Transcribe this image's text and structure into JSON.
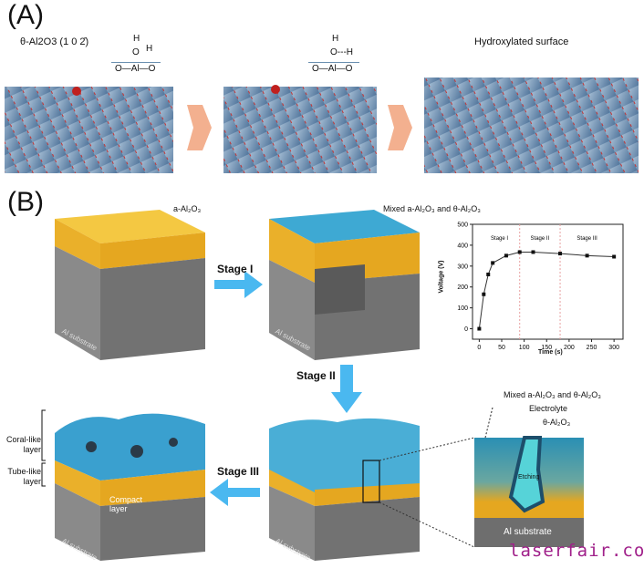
{
  "panel_a": {
    "label": "(A)",
    "surface_label": "θ-Al2O3 (1 0 2̄)",
    "scheme1": {
      "h_top": "H",
      "o": "O",
      "h_side": "H",
      "base": "O—Al—O"
    },
    "scheme2": {
      "h_top": "H",
      "o": "O---H",
      "base": "O—Al—O"
    },
    "hydroxylated_label": "Hydroxylated surface",
    "colors": {
      "arrow": "#f3b08f",
      "crystal": "#5d7fa6",
      "oxygen": "#c0201e",
      "aluminum": "#b9cfdc"
    }
  },
  "panel_b": {
    "label": "(B)",
    "cube1": {
      "top_label": "a-Al₂O₃",
      "substrate": "Al substrate"
    },
    "cube2": {
      "top_label": "Mixed a-Al₂O₃ and θ-Al₂O₃",
      "substrate": "Al substrate"
    },
    "cube3": {
      "coral_label": "Coral-like layer",
      "tube_label": "Tube-like layer",
      "compact_label": "Compact layer",
      "substrate": "Al substrate"
    },
    "cube4": {
      "substrate": "Al substrate"
    },
    "stage1": "Stage I",
    "stage2": "Stage II",
    "stage3": "Stage III",
    "inset": {
      "mixed": "Mixed a-Al₂O₃ and θ-Al₂O₃",
      "electrolyte": "Electrolyte",
      "theta": "θ-Al₂O₃",
      "etching": "Etching",
      "substrate": "Al substrate"
    },
    "colors": {
      "yellow": "#f0b428",
      "blue": "#3ba8d4",
      "gray": "#7c7c7c",
      "arrow": "#4ab8f0"
    }
  },
  "chart_data": {
    "type": "line",
    "title": "",
    "xlabel": "Time (s)",
    "ylabel": "Voltage (V)",
    "x": [
      0,
      10,
      20,
      30,
      60,
      90,
      120,
      180,
      240,
      300
    ],
    "series": [
      {
        "values": [
          0,
          165,
          260,
          315,
          350,
          367,
          367,
          360,
          350,
          345
        ]
      }
    ],
    "xlim": [
      -15,
      320
    ],
    "ylim": [
      -50,
      500
    ],
    "xticks": [
      0,
      50,
      100,
      150,
      200,
      250,
      300
    ],
    "yticks": [
      0,
      100,
      200,
      300,
      400,
      500
    ],
    "stage_dividers": [
      90,
      180
    ],
    "stage_labels": [
      "Stage I",
      "Stage II",
      "Stage III"
    ],
    "grid": false
  },
  "watermark": "laserfair.com"
}
